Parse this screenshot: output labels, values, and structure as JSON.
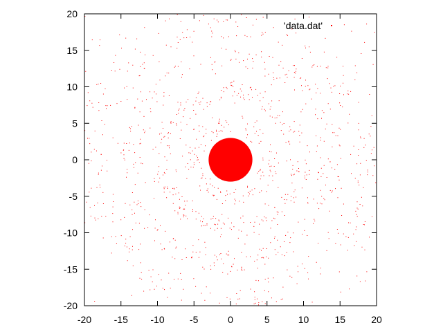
{
  "chart_data": {
    "type": "scatter",
    "title": "",
    "xlabel": "",
    "ylabel": "",
    "xlim": [
      -20,
      20
    ],
    "ylim": [
      -20,
      20
    ],
    "x_ticks": [
      -20,
      -15,
      -10,
      -5,
      0,
      5,
      10,
      15,
      20
    ],
    "y_ticks": [
      -20,
      -15,
      -10,
      -5,
      0,
      5,
      10,
      15,
      20
    ],
    "grid": false,
    "legend_position": "top-right",
    "series": [
      {
        "name": "'data.dat'",
        "color": "#ff0000",
        "marker": "dot",
        "pattern": "concentric rings centered at (0, 0)",
        "solid_core_radius": 3,
        "ring_radii": [
          5,
          9.5,
          14,
          18.5
        ],
        "gap_radii": [
          3.2,
          7,
          11.3,
          16
        ]
      }
    ]
  }
}
